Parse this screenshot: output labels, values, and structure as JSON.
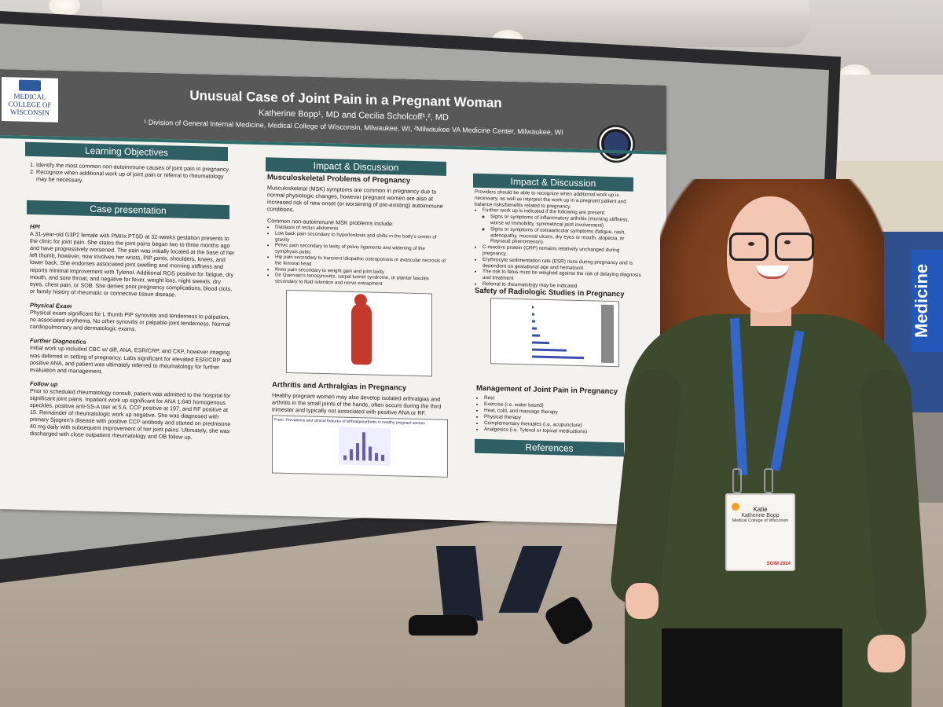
{
  "poster": {
    "logo_text": "MEDICAL COLLEGE OF WISCONSIN",
    "title": "Unusual Case of Joint Pain in a Pregnant Woman",
    "authors": "Katherine Bopp¹, MD and Cecilia Scholcoff¹,², MD",
    "affiliations": "¹ Division of General Internal Medicine, Medical College of Wisconsin, Milwaukee, WI, ²Milwaukee VA Medicine Center, Milwaukee, WI",
    "learning_objectives": {
      "heading": "Learning Objectives",
      "items": [
        "Identify the most common non-autoimmune causes of joint pain in pregnancy.",
        "Recognize when additional work up of joint pain or referral to rheumatology may be necessary."
      ]
    },
    "case": {
      "heading": "Case presentation",
      "hpi_label": "HPI",
      "hpi": "A 31-year-old G3P2 female with PMHx PTSD at 32-weeks gestation presents to the clinic for joint pain. She states the joint pains began two to three months ago and have progressively worsened. The pain was initially located at the base of her left thumb, however, now involves her wrists, PIP joints, shoulders, knees, and lower back. She endorses associated joint swelling and morning stiffness and reports minimal improvement with Tylenol. Additional ROS positive for fatigue, dry mouth, and sore throat, and negative for fever, weight loss, night sweats, dry eyes, chest pain, or SOB. She denies prior pregnancy complications, blood clots, or family history of rheumatic or connective tissue disease.",
      "exam_label": "Physical Exam",
      "exam": "Physical exam significant for L thumb PIP synovitis and tenderness to palpation, no associated erythema. No other synovitis or palpable joint tenderness. Normal cardiopulmonary and dermatologic exams.",
      "dx_label": "Further Diagnostics",
      "dx": "Initial work up included CBC w/ diff, ANA, ESR/CRP, and CKP, however imaging was deferred in setting of pregnancy. Labs significant for elevated ESR/CRP and positive ANA, and patient was ultimately referred to rheumatology for further evaluation and management.",
      "fu_label": "Follow up",
      "fu": "Prior to scheduled rheumatology consult, patient was admitted to the hospital for significant joint pains. Inpatient work up significant for ANA 1:640 homogenous speckles, positive anti-SS-A titer at 5.6, CCP positive at 197, and RF positive at 15. Remainder of rheumatologic work up negative. She was diagnosed with primary Sjogren's disease with positive CCP antibody and started on prednisone 40 mg daily with subsequent improvement of her joint pains. Ultimately, she was discharged with close outpatient rheumatology and OB follow up."
    },
    "impact1": {
      "heading": "Impact & Discussion",
      "msk_title": "Musculoskeletal Problems of Pregnancy",
      "msk_intro": "Musculoskeletal (MSK) symptoms are common in pregnancy due to normal physiologic changes, however pregnant women are also at increased risk of new onset (or worsening of pre-existing) autoimmune conditions.",
      "msk_list_label": "Common non-autoimmune MSK problems include:",
      "msk_items": [
        "Diastasis of rectus abdominis",
        "Low back pain secondary to hyperlordosis and shifts in the body's center of gravity",
        "Pelvic pain secondary to laxity of pelvic ligaments and widening of the symphysis pubis",
        "Hip pain secondary to transient idiopathic osteoporosis or avascular necrosis of the femoral head",
        "Knee pain secondary to weight gain and joint laxity",
        "De Quervain's tenosynovitis, carpal tunnel syndrome, or plantar fasciitis secondary to fluid retention and nerve entrapment"
      ],
      "arth_title": "Arthritis and Arthralgias in Pregnancy",
      "arth_text": "Healthy pregnant women may also develop isolated arthralgias and arthritis in the small joints of the hands, often occurs during the third trimester and typically not associated with positive ANA or RF.",
      "fig_caption": "From: Prevalence and clinical features of arthralgia/arthritis in healthy pregnant women"
    },
    "impact2": {
      "heading": "Impact & Discussion",
      "intro": "Providers should be able to recognize when additional work up is necessary, as well as interpret the work up in a pregnant patient and balance risks/benefits related to pregnancy.",
      "items": [
        "Further work up is indicated if the following are present:",
        "Signs or symptoms of inflammatory arthritis (morning stiffness, worse w/ immobility, symmetrical joint involvement)",
        "Signs or symptoms of extraarticular symptoms (fatigue, rash, adenopathy, mucosal ulcers, dry eyes or mouth, alopecia, or Raynaud phenomenon).",
        "C-reactive protein (CRP) remains relatively unchanged during pregnancy",
        "Erythrocyte sedimentation rate (ESR) rises during pregnancy and is dependent on gestational age and hematocrit",
        "The risk to fetus must be weighed against the risk of delaying diagnosis and treatment",
        "Referral to rheumatology may be indicated"
      ],
      "rad_title": "Safety of Radiologic Studies in Pregnancy",
      "mgmt_title": "Management of Joint Pain in Pregnancy",
      "mgmt_items": [
        "Rest",
        "Exercise (i.e. water based)",
        "Heat, cold, and massage therapy",
        "Physical therapy",
        "Complementary therapies (i.e. acupuncture)",
        "Analgesics (i.e. Tylenol or topical medications)"
      ],
      "ref_heading": "References"
    }
  },
  "background": {
    "banner_text": "Medicine"
  },
  "badge": {
    "first_name": "Katie",
    "full_name": "Katherine Bopp",
    "org": "Medical College of Wisconsin",
    "event": "SGIM 2024"
  },
  "colors": {
    "poster_header": "#585858",
    "section_bar": "#2f5f62",
    "sweater": "#3e4a2e",
    "lanyard": "#3466c9"
  }
}
